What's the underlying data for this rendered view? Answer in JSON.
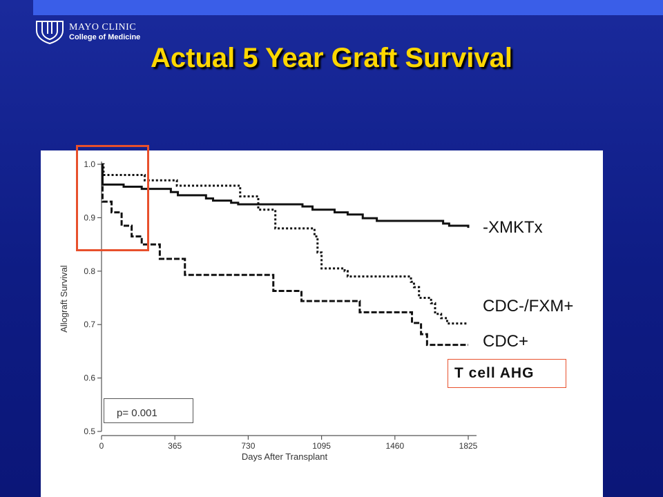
{
  "header": {
    "logo_line1": "MAYO CLINIC",
    "logo_line2": "College of Medicine",
    "title": "Actual 5 Year Graft Survival"
  },
  "annotations": {
    "p_value": "p= 0.001",
    "ahg_label": "T cell AHG"
  },
  "colors": {
    "background": "#0e1c84",
    "title": "#ffd700",
    "highlight": "#e8502c"
  },
  "chart_data": {
    "type": "line",
    "title": "",
    "xlabel": "Days After Transplant",
    "ylabel": "Allograft Survival",
    "xlim": [
      0,
      1825
    ],
    "ylim": [
      0.5,
      1.0
    ],
    "xticks": [
      0,
      365,
      730,
      1095,
      1460,
      1825
    ],
    "yticks": [
      0.5,
      0.6,
      0.7,
      0.8,
      0.9,
      1.0
    ],
    "ytick_labels": [
      "0.5",
      "0.6",
      "0.7",
      "0.8",
      "0.9",
      "1.0"
    ],
    "grid": false,
    "step": true,
    "series": [
      {
        "name": "-XMKTx",
        "style": "solid",
        "points": [
          [
            0,
            1.0
          ],
          [
            5,
            0.962
          ],
          [
            110,
            0.958
          ],
          [
            200,
            0.954
          ],
          [
            345,
            0.948
          ],
          [
            380,
            0.942
          ],
          [
            520,
            0.936
          ],
          [
            555,
            0.932
          ],
          [
            645,
            0.928
          ],
          [
            680,
            0.925
          ],
          [
            1000,
            0.921
          ],
          [
            1050,
            0.915
          ],
          [
            1160,
            0.91
          ],
          [
            1225,
            0.906
          ],
          [
            1300,
            0.899
          ],
          [
            1370,
            0.894
          ],
          [
            1700,
            0.889
          ],
          [
            1730,
            0.885
          ],
          [
            1825,
            0.881
          ]
        ]
      },
      {
        "name": "CDC-/FXM+",
        "style": "dotted",
        "points": [
          [
            0,
            1.0
          ],
          [
            10,
            0.98
          ],
          [
            215,
            0.97
          ],
          [
            375,
            0.96
          ],
          [
            690,
            0.94
          ],
          [
            780,
            0.915
          ],
          [
            865,
            0.88
          ],
          [
            1060,
            0.865
          ],
          [
            1075,
            0.835
          ],
          [
            1095,
            0.805
          ],
          [
            1210,
            0.8
          ],
          [
            1225,
            0.79
          ],
          [
            1540,
            0.78
          ],
          [
            1555,
            0.77
          ],
          [
            1580,
            0.75
          ],
          [
            1640,
            0.74
          ],
          [
            1660,
            0.72
          ],
          [
            1690,
            0.712
          ],
          [
            1720,
            0.702
          ],
          [
            1825,
            0.702
          ]
        ]
      },
      {
        "name": "CDC+",
        "style": "dashed",
        "points": [
          [
            0,
            1.0
          ],
          [
            5,
            0.93
          ],
          [
            50,
            0.91
          ],
          [
            100,
            0.885
          ],
          [
            150,
            0.865
          ],
          [
            200,
            0.85
          ],
          [
            290,
            0.823
          ],
          [
            415,
            0.793
          ],
          [
            855,
            0.763
          ],
          [
            995,
            0.744
          ],
          [
            1285,
            0.723
          ],
          [
            1545,
            0.703
          ],
          [
            1590,
            0.682
          ],
          [
            1620,
            0.662
          ],
          [
            1825,
            0.662
          ]
        ]
      }
    ]
  }
}
